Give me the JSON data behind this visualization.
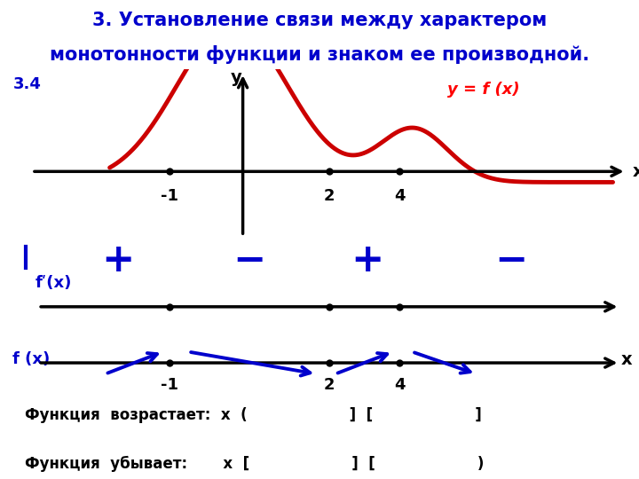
{
  "title_line1": "3. Установление связи между характером",
  "title_line2": "монотонности функции и знаком ее производной.",
  "title_bg": "#ffffaa",
  "title_color": "#0000cc",
  "label_34": "3.4",
  "curve_color": "#cc0000",
  "curve_label": "y = f (x)",
  "blue_color": "#0000cc",
  "bottom_text1": "Функция  возрастает:  х  (                    ]  [                    ]",
  "bottom_text2": "Функция  убывает:       х  [                    ]  [                    )"
}
